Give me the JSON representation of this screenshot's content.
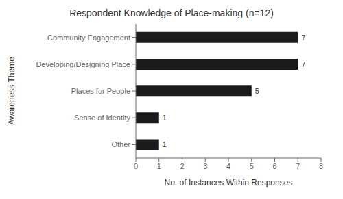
{
  "chart_data": {
    "type": "bar",
    "orientation": "horizontal",
    "title": "Respondent Knowledge of Place-making (n=12)",
    "xlabel": "No. of Instances Within Responses",
    "ylabel": "Awareness Theme",
    "categories": [
      "Community Engagement",
      "Developing/Designing Place",
      "Places for People",
      "Sense of Identity",
      "Other"
    ],
    "values": [
      7,
      7,
      5,
      1,
      1
    ],
    "color": "#1a1a1a",
    "xlim": [
      0,
      8
    ],
    "xticks": [
      0,
      1,
      2,
      3,
      4,
      5,
      6,
      7,
      8
    ],
    "data_labels": true,
    "grid": false
  }
}
